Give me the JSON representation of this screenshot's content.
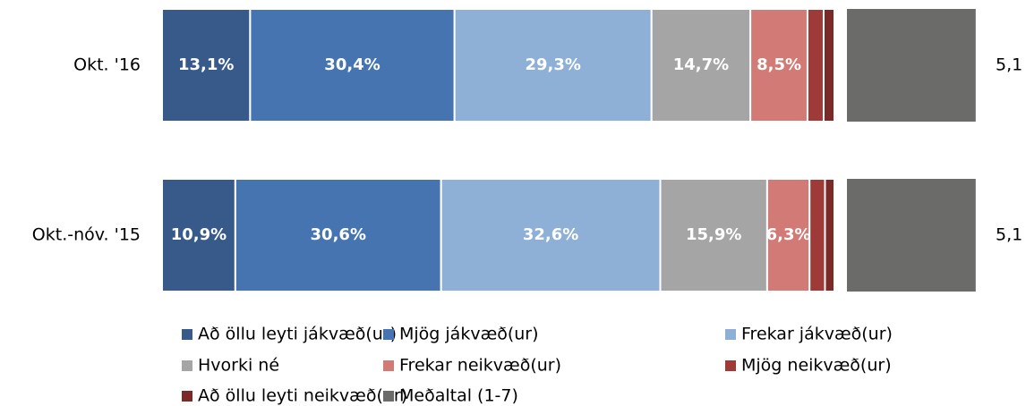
{
  "chart_data": {
    "type": "bar",
    "orientation": "horizontal",
    "stacked": true,
    "categories": [
      "Okt. '16",
      "Okt.-nóv. '15"
    ],
    "xlim": [
      0,
      100
    ],
    "series": [
      {
        "name": "Að öllu leyti jákvæð(ur)",
        "color": "#375a8a",
        "values": [
          13.1,
          10.9
        ],
        "value_labels": [
          "13,1%",
          "10,9%"
        ]
      },
      {
        "name": "Mjög jákvæð(ur)",
        "color": "#4574b0",
        "values": [
          30.4,
          30.6
        ],
        "value_labels": [
          "30,4%",
          "30,6%"
        ]
      },
      {
        "name": "Frekar jákvæð(ur)",
        "color": "#8eafd6",
        "values": [
          29.3,
          32.6
        ],
        "value_labels": [
          "29,3%",
          "32,6%"
        ]
      },
      {
        "name": "Hvorki né",
        "color": "#a5a5a5",
        "values": [
          14.7,
          15.9
        ],
        "value_labels": [
          "14,7%",
          "15,9%"
        ]
      },
      {
        "name": "Frekar neikvæð(ur)",
        "color": "#d27a76",
        "values": [
          8.5,
          6.3
        ],
        "value_labels": [
          "8,5%",
          "6,3%"
        ]
      },
      {
        "name": "Mjög neikvæð(ur)",
        "color": "#9e3b39",
        "values": [
          2.4,
          2.3
        ]
      },
      {
        "name": "Að öllu leyti neikvæð(ur)",
        "color": "#7b2a27",
        "values": [
          1.6,
          1.4
        ]
      }
    ],
    "mean_series": {
      "name": "Meðaltal (1-7)",
      "color": "#6b6b69",
      "values": [
        5.1,
        5.1
      ],
      "value_labels": [
        "5,1",
        "5,1"
      ]
    }
  }
}
